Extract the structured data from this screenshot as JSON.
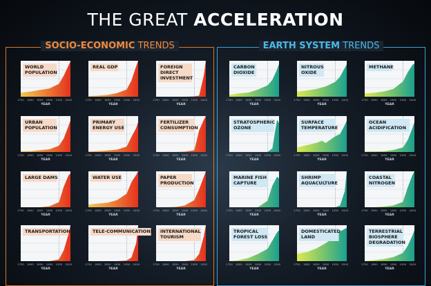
{
  "header": {
    "title_light": "THE GREAT ",
    "title_bold": "ACCELERATION"
  },
  "panels": {
    "socio": {
      "title_bold": "SOCIO-ECONOMIC",
      "title_light": " TRENDS"
    },
    "earth": {
      "title_bold": "EARTH SYSTEM",
      "title_light": " TRENDS"
    }
  },
  "colors": {
    "socio_fill_light": "#f3c13a",
    "socio_fill_dark": "#e4321e",
    "earth_fill_light": "#d8e83a",
    "earth_fill_dark": "#1aa08f",
    "label_socio": "#f6d9c7",
    "label_earth": "#cfe8f4"
  },
  "chart_data": [
    {
      "type": "area",
      "title": "WORLD POPULATION",
      "xlabel": "YEAR",
      "x": [
        1750,
        1800,
        1850,
        1900,
        1950,
        1975,
        2000,
        2010
      ],
      "values": [
        0.8,
        1.0,
        1.3,
        1.6,
        2.5,
        4.1,
        6.1,
        6.9
      ],
      "ylim": [
        0,
        7
      ],
      "group": "socio"
    },
    {
      "type": "area",
      "title": "REAL GDP",
      "xlabel": "YEAR",
      "x": [
        1750,
        1800,
        1850,
        1900,
        1950,
        1975,
        2000,
        2010
      ],
      "values": [
        2,
        3,
        5,
        10,
        20,
        45,
        85,
        100
      ],
      "ylim": [
        0,
        100
      ],
      "group": "socio"
    },
    {
      "type": "area",
      "title": "FOREIGN DIRECT INVESTMENT",
      "xlabel": "YEAR",
      "x": [
        1750,
        1800,
        1850,
        1900,
        1950,
        1975,
        2000,
        2010
      ],
      "values": [
        0,
        0,
        0,
        0,
        1,
        3,
        60,
        100
      ],
      "ylim": [
        0,
        100
      ],
      "group": "socio"
    },
    {
      "type": "area",
      "title": "URBAN POPULATION",
      "xlabel": "YEAR",
      "x": [
        1750,
        1800,
        1850,
        1900,
        1950,
        1975,
        2000,
        2010
      ],
      "values": [
        0.1,
        0.1,
        0.2,
        0.3,
        0.7,
        1.5,
        2.9,
        3.5
      ],
      "ylim": [
        0,
        4
      ],
      "group": "socio"
    },
    {
      "type": "area",
      "title": "PRIMARY ENERGY USE",
      "xlabel": "YEAR",
      "x": [
        1750,
        1800,
        1850,
        1900,
        1950,
        1975,
        2000,
        2010
      ],
      "values": [
        10,
        15,
        25,
        40,
        90,
        250,
        400,
        500
      ],
      "ylim": [
        0,
        600
      ],
      "group": "socio"
    },
    {
      "type": "area",
      "title": "FERTILIZER CONSUMPTION",
      "xlabel": "YEAR",
      "x": [
        1750,
        1800,
        1850,
        1900,
        1950,
        1975,
        2000,
        2010
      ],
      "values": [
        0,
        0,
        0,
        1,
        5,
        60,
        90,
        100
      ],
      "ylim": [
        0,
        100
      ],
      "group": "socio"
    },
    {
      "type": "area",
      "title": "LARGE DAMS",
      "xlabel": "YEAR",
      "x": [
        1750,
        1800,
        1850,
        1900,
        1950,
        1975,
        2000,
        2010
      ],
      "values": [
        0,
        0,
        0,
        1,
        5,
        20,
        31,
        33
      ],
      "ylim": [
        0,
        35
      ],
      "group": "socio"
    },
    {
      "type": "area",
      "title": "WATER USE",
      "xlabel": "YEAR",
      "x": [
        1750,
        1800,
        1850,
        1900,
        1950,
        1975,
        2000,
        2010
      ],
      "values": [
        0.3,
        0.4,
        0.5,
        0.8,
        1.5,
        2.8,
        3.6,
        4
      ],
      "ylim": [
        0,
        4
      ],
      "group": "socio"
    },
    {
      "type": "area",
      "title": "PAPER PRODUCTION",
      "xlabel": "YEAR",
      "x": [
        1750,
        1800,
        1850,
        1900,
        1950,
        1975,
        2000,
        2010
      ],
      "values": [
        0,
        0,
        1,
        5,
        20,
        50,
        85,
        100
      ],
      "ylim": [
        0,
        100
      ],
      "group": "socio"
    },
    {
      "type": "area",
      "title": "TRANSPORTATION",
      "xlabel": "YEAR",
      "x": [
        1750,
        1800,
        1850,
        1900,
        1950,
        1975,
        2000,
        2010
      ],
      "values": [
        0,
        0,
        0,
        0,
        5,
        30,
        75,
        100
      ],
      "ylim": [
        0,
        100
      ],
      "group": "socio"
    },
    {
      "type": "area",
      "title": "TELE-COMMUNICATIONS",
      "xlabel": "YEAR",
      "x": [
        1750,
        1800,
        1850,
        1900,
        1950,
        1975,
        2000,
        2010
      ],
      "values": [
        0,
        0,
        0,
        0,
        2,
        10,
        50,
        100
      ],
      "ylim": [
        0,
        100
      ],
      "group": "socio"
    },
    {
      "type": "area",
      "title": "INTERNATIONAL TOURISM",
      "xlabel": "YEAR",
      "x": [
        1750,
        1800,
        1850,
        1900,
        1950,
        1975,
        2000,
        2010
      ],
      "values": [
        0,
        0,
        0,
        0,
        3,
        20,
        70,
        100
      ],
      "ylim": [
        0,
        100
      ],
      "group": "socio"
    },
    {
      "type": "area",
      "title": "CARBON DIOXIDE",
      "xlabel": "YEAR",
      "x": [
        1750,
        1800,
        1850,
        1900,
        1950,
        1975,
        2000,
        2010
      ],
      "values": [
        277,
        282,
        285,
        296,
        311,
        331,
        369,
        389
      ],
      "ylim": [
        270,
        400
      ],
      "group": "earth"
    },
    {
      "type": "area",
      "title": "NITROUS OXIDE",
      "xlabel": "YEAR",
      "x": [
        1750,
        1800,
        1850,
        1900,
        1950,
        1975,
        2000,
        2010
      ],
      "values": [
        270,
        272,
        275,
        280,
        289,
        299,
        316,
        323
      ],
      "ylim": [
        260,
        330
      ],
      "group": "earth"
    },
    {
      "type": "area",
      "title": "METHANE",
      "xlabel": "YEAR",
      "x": [
        1750,
        1800,
        1850,
        1900,
        1950,
        1975,
        2000,
        2010
      ],
      "values": [
        720,
        740,
        790,
        880,
        1150,
        1480,
        1750,
        1800
      ],
      "ylim": [
        600,
        1900
      ],
      "group": "earth"
    },
    {
      "type": "area",
      "title": "STRATOSPHERIC OZONE",
      "xlabel": "YEAR",
      "x": [
        1750,
        1800,
        1850,
        1900,
        1950,
        1975,
        1990,
        2000,
        2010
      ],
      "values": [
        0,
        0,
        0,
        0,
        0,
        5,
        30,
        45,
        40
      ],
      "ylim": [
        0,
        50
      ],
      "group": "earth"
    },
    {
      "type": "area",
      "title": "SURFACE TEMPERATURE",
      "xlabel": "YEAR",
      "x": [
        1750,
        1800,
        1850,
        1880,
        1900,
        1950,
        1975,
        2000,
        2010
      ],
      "values": [
        -0.6,
        -0.5,
        -0.4,
        -0.3,
        -0.4,
        -0.1,
        0.0,
        0.4,
        0.6
      ],
      "ylim": [
        -0.8,
        0.8
      ],
      "group": "earth"
    },
    {
      "type": "area",
      "title": "OCEAN ACIDIFICATION",
      "xlabel": "YEAR",
      "x": [
        1750,
        1800,
        1850,
        1900,
        1950,
        1975,
        2000,
        2010
      ],
      "values": [
        8.2,
        8.2,
        8.2,
        8.7,
        9.5,
        12,
        16,
        18
      ],
      "ylim": [
        8,
        20
      ],
      "group": "earth"
    },
    {
      "type": "area",
      "title": "MARINE FISH CAPTURE",
      "xlabel": "YEAR",
      "x": [
        1750,
        1800,
        1850,
        1900,
        1950,
        1975,
        2000,
        2010
      ],
      "values": [
        0,
        0,
        0,
        0,
        18,
        60,
        85,
        80
      ],
      "ylim": [
        0,
        100
      ],
      "group": "earth"
    },
    {
      "type": "area",
      "title": "SHRIMP AQUACULTURE",
      "xlabel": "YEAR",
      "x": [
        1750,
        1800,
        1850,
        1900,
        1950,
        1975,
        2000,
        2010
      ],
      "values": [
        0,
        0,
        0,
        0,
        0,
        5,
        45,
        100
      ],
      "ylim": [
        0,
        100
      ],
      "group": "earth"
    },
    {
      "type": "area",
      "title": "COASTAL NITROGEN",
      "xlabel": "YEAR",
      "x": [
        1750,
        1800,
        1850,
        1900,
        1950,
        1975,
        2000,
        2010
      ],
      "values": [
        0,
        0,
        2,
        5,
        15,
        55,
        90,
        100
      ],
      "ylim": [
        0,
        100
      ],
      "group": "earth"
    },
    {
      "type": "area",
      "title": "TROPICAL FOREST LOSS",
      "xlabel": "YEAR",
      "x": [
        1750,
        1800,
        1850,
        1900,
        1950,
        1975,
        2000,
        2010
      ],
      "values": [
        0,
        1,
        3,
        7,
        12,
        20,
        28,
        30
      ],
      "ylim": [
        0,
        35
      ],
      "group": "earth"
    },
    {
      "type": "area",
      "title": "DOMESTICATED LAND",
      "xlabel": "YEAR",
      "x": [
        1750,
        1800,
        1850,
        1900,
        1950,
        1975,
        2000,
        2010
      ],
      "values": [
        8,
        10,
        14,
        20,
        28,
        33,
        36,
        37
      ],
      "ylim": [
        0,
        40
      ],
      "group": "earth"
    },
    {
      "type": "area",
      "title": "TERRESTRIAL BIOSPHERE DEGRADATION",
      "xlabel": "YEAR",
      "x": [
        1750,
        1800,
        1850,
        1900,
        1950,
        1975,
        2000,
        2010
      ],
      "values": [
        0,
        1,
        2,
        4,
        8,
        15,
        25,
        30
      ],
      "ylim": [
        0,
        35
      ],
      "group": "earth"
    }
  ]
}
